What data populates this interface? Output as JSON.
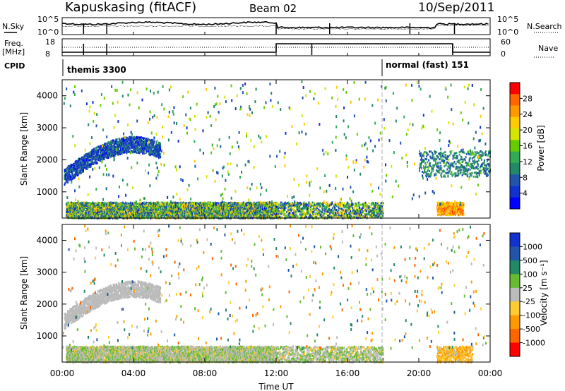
{
  "header": {
    "station": "Kapuskasing (fitACF)",
    "beam": "Beam 02",
    "date": "10/Sep/2011"
  },
  "noise_panel": {
    "left_label": "N.Sky",
    "right_label": "N.Search",
    "left_ticks": [
      "10^5",
      "10^0"
    ],
    "right_ticks": [
      "10^5",
      "10^0"
    ]
  },
  "freq_panel": {
    "left_label_1": "Freq.",
    "left_label_2": "[MHz]",
    "right_label": "Nave",
    "left_ticks": [
      "18",
      "8"
    ],
    "right_ticks": [
      "60",
      "0"
    ]
  },
  "cpid": {
    "label": "CPID",
    "modes": [
      {
        "name": "themis 3300",
        "start_hour": 0,
        "end_hour": 18
      },
      {
        "name": "normal (fast) 151",
        "start_hour": 18,
        "end_hour": 24
      }
    ]
  },
  "power_scale": {
    "label": "Power [dB]",
    "ticks": [
      "28",
      "24",
      "20",
      "16",
      "12",
      "8",
      "4"
    ],
    "colors": [
      "#ff0000",
      "#ff6600",
      "#ff9900",
      "#ffcc00",
      "#d4e600",
      "#66cc00",
      "#33aa55",
      "#228866",
      "#2255aa",
      "#1133cc",
      "#0000ff"
    ]
  },
  "velocity_scale": {
    "label": "Velocity [m s⁻¹]",
    "ticks": [
      "1000",
      "500",
      "100",
      "25",
      "-25",
      "-100",
      "-500",
      "-1000"
    ],
    "colors": [
      "#1133cc",
      "#2255aa",
      "#228866",
      "#66bb33",
      "#bbbbbb",
      "#ffcc33",
      "#ff9900",
      "#ff6600",
      "#ff0000"
    ]
  },
  "y_axis": {
    "label": "Slant Range [km]",
    "ticks": [
      "4000",
      "3000",
      "2000",
      "1000"
    ]
  },
  "x_axis": {
    "label": "Time UT",
    "ticks": [
      "00:00",
      "04:00",
      "08:00",
      "12:00",
      "16:00",
      "20:00",
      "00:00"
    ]
  },
  "chart_data": {
    "type": "heatmap",
    "title": "Kapuskasing (fitACF) Beam 02 10/Sep/2011",
    "xlabel": "Time UT",
    "ylabel": "Slant Range [km]",
    "xlim": [
      0,
      24
    ],
    "ylim": [
      180,
      4500
    ],
    "panels": [
      {
        "name": "Power [dB]",
        "zlim": [
          0,
          30
        ],
        "regions": [
          {
            "desc": "arc",
            "t_start": 0.1,
            "t_end": 5.5,
            "r_low": 1300,
            "r_high": 2550,
            "value": 5
          },
          {
            "desc": "near-range",
            "t_start": 0.2,
            "t_end": 18,
            "r_low": 200,
            "r_high": 700,
            "value": 12
          },
          {
            "desc": "late-arc",
            "t_start": 20,
            "t_end": 24,
            "r_low": 1500,
            "r_high": 2300,
            "value": 9
          },
          {
            "desc": "evening-blob",
            "t_start": 21,
            "t_end": 22.5,
            "r_low": 300,
            "r_high": 700,
            "value": 24
          }
        ]
      },
      {
        "name": "Velocity [m s-1]",
        "zlim": [
          -1000,
          1000
        ],
        "regions": [
          {
            "desc": "arc",
            "t_start": 0.1,
            "t_end": 5.5,
            "r_low": 1300,
            "r_high": 2550,
            "value": 0
          },
          {
            "desc": "near-range",
            "t_start": 0.2,
            "t_end": 18,
            "r_low": 200,
            "r_high": 700,
            "value": 50
          },
          {
            "desc": "evening-blob",
            "t_start": 21,
            "t_end": 23,
            "r_low": 200,
            "r_high": 700,
            "value": -300
          }
        ]
      }
    ]
  }
}
